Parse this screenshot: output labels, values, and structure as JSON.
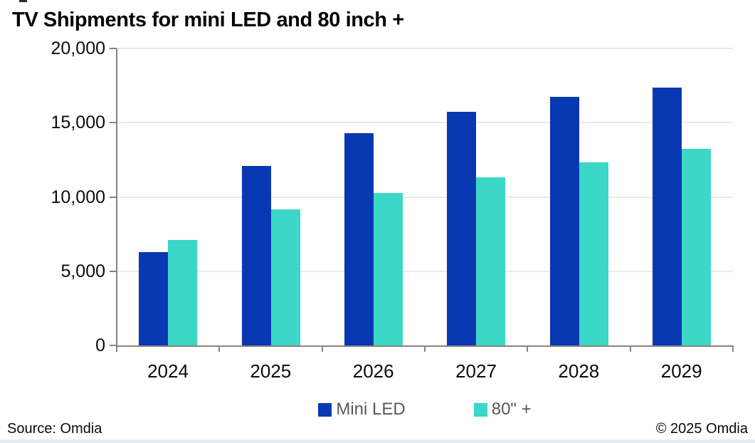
{
  "title": "TV Shipments for mini LED and 80 inch +",
  "footer": {
    "source": "Source: Omdia",
    "copyright": "© 2025 Omdia"
  },
  "colors": {
    "mini_led": "#0839b2",
    "eighty_plus": "#3bd7c7",
    "gridline": "#eaeae8",
    "axis": "#8b8379",
    "legend_text": "#595959",
    "label_text": "#0c0c0c",
    "bottom_strip": "#e3edf4"
  },
  "chart_data": {
    "type": "bar",
    "title": "TV Shipments for mini LED and 80 inch +",
    "categories": [
      "2024",
      "2025",
      "2026",
      "2027",
      "2028",
      "2029"
    ],
    "series": [
      {
        "name": "Mini LED",
        "color": "#0839b2",
        "values": [
          6300,
          12100,
          14300,
          15750,
          16750,
          17350
        ]
      },
      {
        "name": "80\" +",
        "color": "#3bd7c7",
        "values": [
          7100,
          9150,
          10250,
          11300,
          12350,
          13250
        ]
      }
    ],
    "xlabel": "",
    "ylabel": "",
    "ylim": [
      0,
      20000
    ],
    "y_ticks": [
      {
        "value": 20000,
        "label": "20,000"
      },
      {
        "value": 15000,
        "label": "15,000"
      },
      {
        "value": 10000,
        "label": "10,000"
      },
      {
        "value": 5000,
        "label": "5,000"
      },
      {
        "value": 0,
        "label": "0"
      }
    ],
    "grid": true,
    "legend_position": "bottom"
  }
}
